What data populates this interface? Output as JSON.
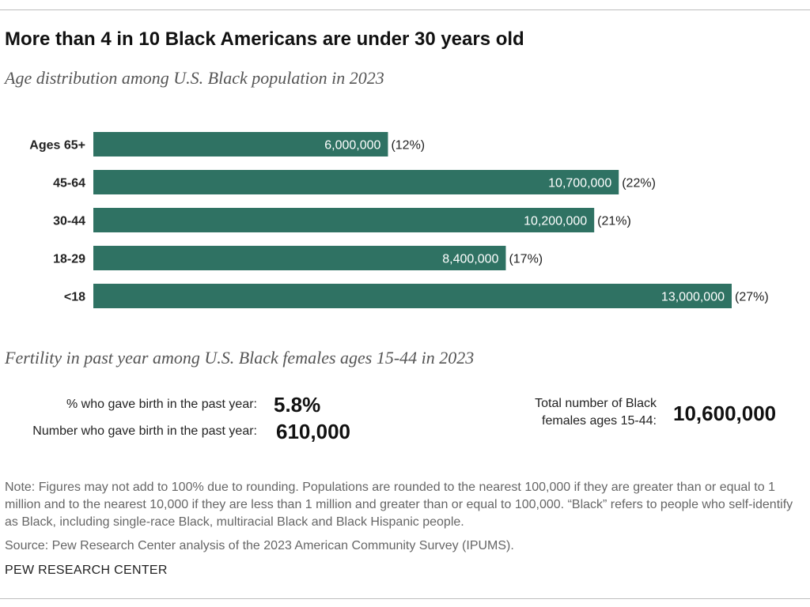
{
  "header": {
    "title": "More than 4 in 10 Black Americans are under 30 years old",
    "subtitle": "Age distribution among U.S. Black population in 2023"
  },
  "chart_data": {
    "type": "bar",
    "orientation": "horizontal",
    "title": "Age distribution among U.S. Black population in 2023",
    "categories": [
      "Ages 65+",
      "45-64",
      "30-44",
      "18-29",
      "<18"
    ],
    "values": [
      6000000,
      10700000,
      10200000,
      8400000,
      13000000
    ],
    "value_labels": [
      "6,000,000",
      "10,700,000",
      "10,200,000",
      "8,400,000",
      "13,000,000"
    ],
    "percent_labels": [
      "(12%)",
      "(22%)",
      "(21%)",
      "(17%)",
      "(27%)"
    ],
    "xlim": [
      0,
      13000000
    ],
    "bar_color": "#2f7263",
    "grid": false
  },
  "fertility": {
    "heading": "Fertility in past year among U.S. Black females ages 15-44 in 2023",
    "pct_label": "% who gave birth in the past year:",
    "pct_value": "5.8%",
    "number_label": "Number who gave birth in the past year:",
    "number_value": "610,000",
    "total_label_line1": "Total number of Black",
    "total_label_line2": "females ages 15-44:",
    "total_value": "10,600,000"
  },
  "footer": {
    "note": "Note: Figures may not add to 100% due to rounding. Populations are rounded to the nearest 100,000 if they are greater than or equal to 1 million and to the nearest 10,000 if they are less than 1 million and greater than or equal to 100,000. “Black” refers to people who self-identify as Black, including single-race Black, multiracial Black and Black Hispanic people.",
    "source": "Source: Pew Research Center analysis of the 2023 American Community Survey (IPUMS).",
    "brand": "PEW RESEARCH CENTER"
  }
}
